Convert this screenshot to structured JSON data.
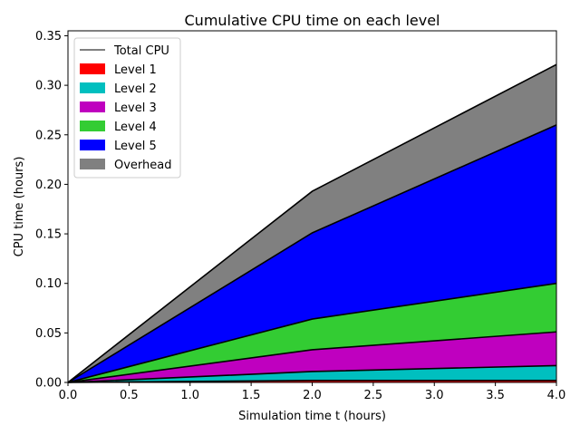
{
  "chart_data": {
    "type": "area",
    "title": "Cumulative CPU time on each level",
    "xlabel": "Simulation time t (hours)",
    "ylabel": "CPU time (hours)",
    "xlim": [
      0,
      4
    ],
    "ylim": [
      0,
      0.355
    ],
    "xticks": [
      0.0,
      0.5,
      1.0,
      1.5,
      2.0,
      2.5,
      3.0,
      3.5,
      4.0
    ],
    "xtick_labels": [
      "0.0",
      "0.5",
      "1.0",
      "1.5",
      "2.0",
      "2.5",
      "3.0",
      "3.5",
      "4.0"
    ],
    "yticks": [
      0.0,
      0.05,
      0.1,
      0.15,
      0.2,
      0.25,
      0.3,
      0.35
    ],
    "ytick_labels": [
      "0.00",
      "0.05",
      "0.10",
      "0.15",
      "0.20",
      "0.25",
      "0.30",
      "0.35"
    ],
    "stacked": true,
    "grid": false,
    "legend_position": "top-left",
    "x": [
      0,
      2,
      4
    ],
    "series": [
      {
        "name": "Level 1",
        "color": "#ff0000",
        "values": [
          0,
          0.002,
          0.002
        ]
      },
      {
        "name": "Level 2",
        "color": "#00bfbf",
        "values": [
          0,
          0.009,
          0.015
        ]
      },
      {
        "name": "Level 3",
        "color": "#bf00bf",
        "values": [
          0,
          0.022,
          0.034
        ]
      },
      {
        "name": "Level 4",
        "color": "#33cc33",
        "values": [
          0,
          0.031,
          0.049
        ]
      },
      {
        "name": "Level 5",
        "color": "#0000ff",
        "values": [
          0,
          0.087,
          0.16
        ]
      },
      {
        "name": "Overhead",
        "color": "#808080",
        "values": [
          0,
          0.042,
          0.061
        ]
      }
    ],
    "total": {
      "name": "Total CPU",
      "color": "#000000",
      "values": [
        0,
        0.193,
        0.321
      ]
    }
  }
}
